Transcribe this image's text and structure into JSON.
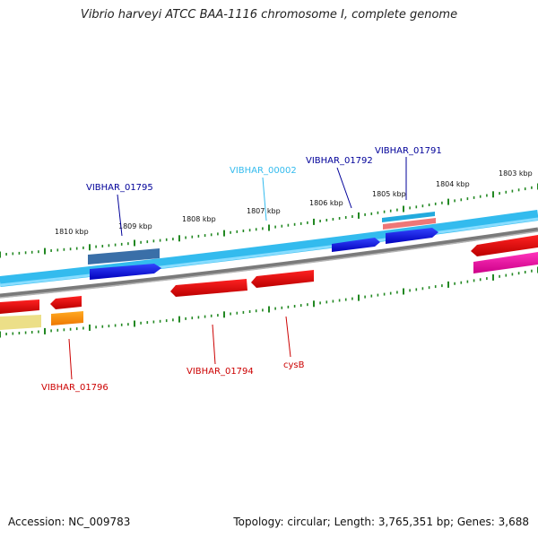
{
  "title": "Vibrio harveyi ATCC BAA-1116 chromosome I, complete genome",
  "footer": {
    "accession": "Accession: NC_009783",
    "summary": "Topology: circular; Length: 3,765,351 bp; Genes: 3,688"
  },
  "colors": {
    "forward_gene": "#0000ee",
    "reverse_gene": "#ee0000",
    "backbone_outer": "#33bbee",
    "backbone_inner": "#7a7a7a",
    "ticks": "#228822",
    "label_blue": "#000099",
    "label_cyan": "#33bbee",
    "label_red": "#cc0000"
  },
  "scale": {
    "unit": "kbp",
    "tick_labels": [
      "1810 kbp",
      "1809 kbp",
      "1808 kbp",
      "1807 kbp",
      "1806 kbp",
      "1805 kbp",
      "1804 kbp",
      "1803 kbp"
    ]
  },
  "gene_labels": {
    "vibhar_01795": "VIBHAR_01795",
    "vibhar_00002": "VIBHAR_00002",
    "vibhar_01792": "VIBHAR_01792",
    "vibhar_01791": "VIBHAR_01791",
    "vibhar_01796": "VIBHAR_01796",
    "vibhar_01794": "VIBHAR_01794",
    "cysb": "cysB"
  }
}
